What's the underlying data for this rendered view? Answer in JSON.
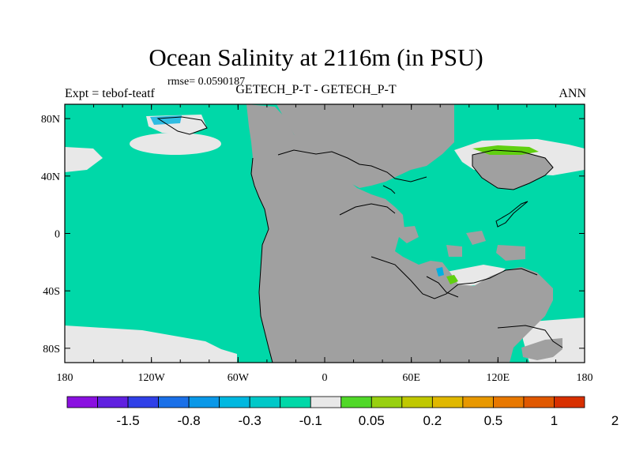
{
  "header": {
    "title": "Ocean Salinity at 2116m (in PSU)",
    "rmse": "rmse= 0.0590187",
    "subtitle": "GETECH_P-T - GETECH_P-T",
    "left_label": "Expt = tebof-teatf",
    "right_label": "ANN"
  },
  "map": {
    "x_ticks": [
      "180",
      "120W",
      "60W",
      "0",
      "60E",
      "120E",
      "180"
    ],
    "y_ticks": [
      "80N",
      "40N",
      "0",
      "40S",
      "80S"
    ],
    "colors": {
      "ocean_main": "#00d8a8",
      "land": "#a0a0a0",
      "neutral_white": "#e8e8e8",
      "positive_green": "#60d010",
      "negative_blue": "#00b0e0"
    }
  },
  "colorbar": {
    "colors": [
      "#8a10e0",
      "#6020e0",
      "#3040e8",
      "#1a70e8",
      "#0a98e8",
      "#00b8e0",
      "#00c8c8",
      "#00d8a8",
      "#e8e8e8",
      "#50d828",
      "#98d010",
      "#c0c800",
      "#e0b800",
      "#e89800",
      "#e87800",
      "#e05800",
      "#d83000"
    ],
    "labels": [
      "-1.5",
      "-0.8",
      "-0.3",
      "-0.1",
      "0.05",
      "0.2",
      "0.5",
      "1",
      "2"
    ]
  }
}
